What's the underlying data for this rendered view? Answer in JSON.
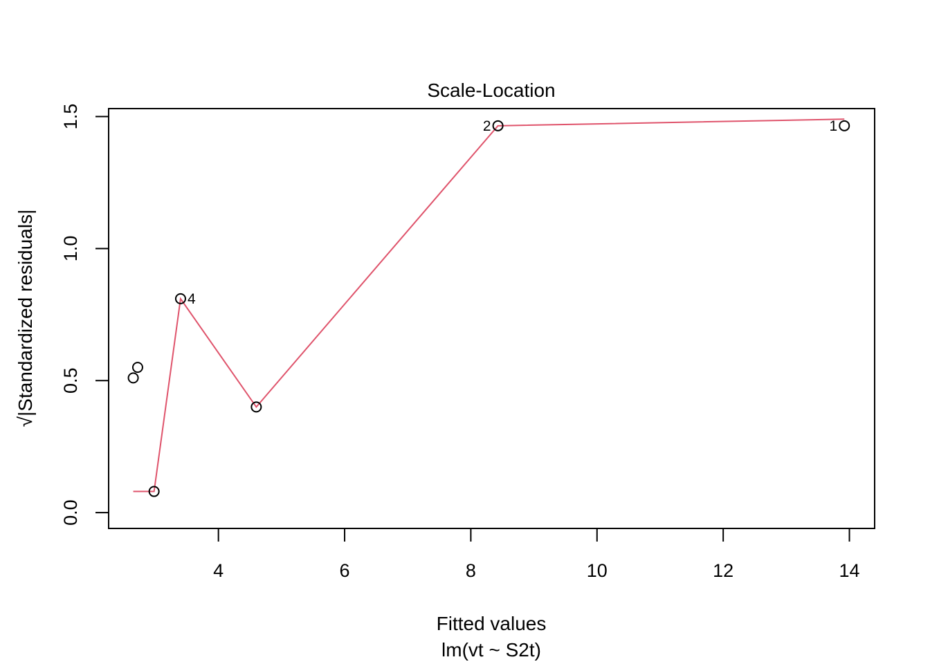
{
  "chart_data": {
    "type": "scatter",
    "title": "Scale-Location",
    "xlabel": "Fitted values",
    "xsublabel": "lm(vt ~ S2t)",
    "ylabel": "√|Standardized residuals|",
    "xlim": [
      2.26,
      14.4
    ],
    "ylim": [
      -0.06,
      1.53
    ],
    "xticks": [
      4,
      6,
      8,
      10,
      12,
      14
    ],
    "yticks": [
      0.0,
      0.5,
      1.0,
      1.5
    ],
    "xtick_labels": [
      "4",
      "6",
      "8",
      "10",
      "12",
      "14"
    ],
    "ytick_labels": [
      "0.0",
      "0.5",
      "1.0",
      "1.5"
    ],
    "grid": false,
    "points": [
      {
        "x": 2.65,
        "y": 0.51
      },
      {
        "x": 2.72,
        "y": 0.55
      },
      {
        "x": 2.98,
        "y": 0.08
      },
      {
        "x": 3.4,
        "y": 0.81,
        "label": "4",
        "label_side": "right"
      },
      {
        "x": 4.6,
        "y": 0.4
      },
      {
        "x": 8.43,
        "y": 1.465,
        "label": "2",
        "label_side": "left"
      },
      {
        "x": 13.92,
        "y": 1.465,
        "label": "1",
        "label_side": "left"
      }
    ],
    "smoother": {
      "color": "#DF536B",
      "x": [
        2.65,
        2.98,
        3.4,
        4.6,
        8.43,
        13.92
      ],
      "y": [
        0.08,
        0.08,
        0.81,
        0.4,
        1.465,
        1.49
      ]
    }
  }
}
